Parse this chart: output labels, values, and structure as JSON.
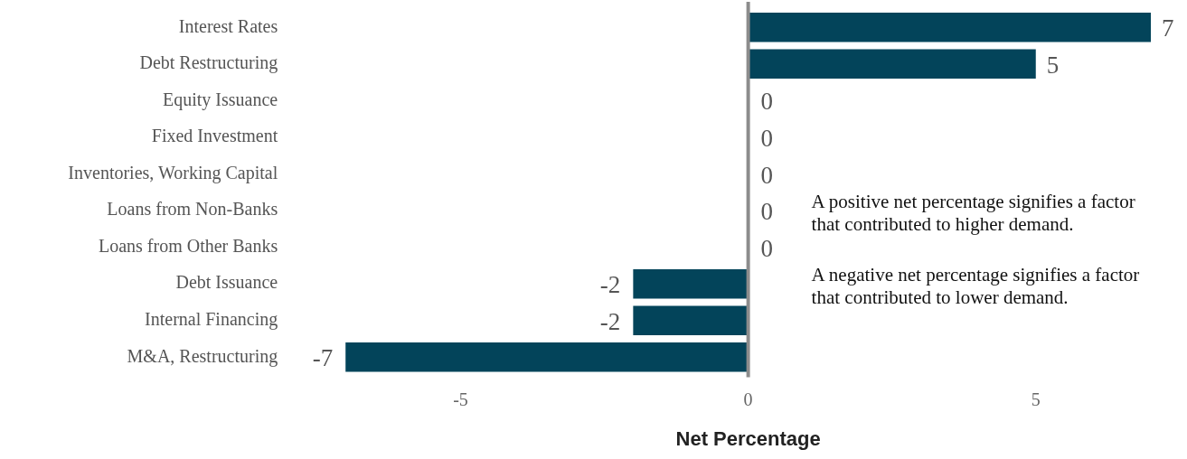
{
  "chart_data": {
    "type": "bar",
    "orientation": "horizontal",
    "xlabel": "Net Percentage",
    "categories": [
      "Interest Rates",
      "Debt Restructuring",
      "Equity Issuance",
      "Fixed Investment",
      "Inventories, Working Capital",
      "Loans from Non-Banks",
      "Loans from Other Banks",
      "Debt Issuance",
      "Internal Financing",
      "M&A, Restructuring"
    ],
    "values": [
      7,
      5,
      0,
      0,
      0,
      0,
      0,
      -2,
      -2,
      -7
    ],
    "color": "#03445a",
    "xlim": [
      -7,
      7
    ],
    "xticks": [
      -5,
      0,
      5
    ],
    "grid": false,
    "legend": false,
    "data_labels": true,
    "ref_lines": [
      {
        "axis": "x",
        "value": 0,
        "color": "#8c8c8c"
      }
    ],
    "annotations": [
      "A positive net percentage signifies a factor that contributed to higher demand.",
      "A negative net percentage signifies a factor that contributed to lower demand."
    ]
  }
}
